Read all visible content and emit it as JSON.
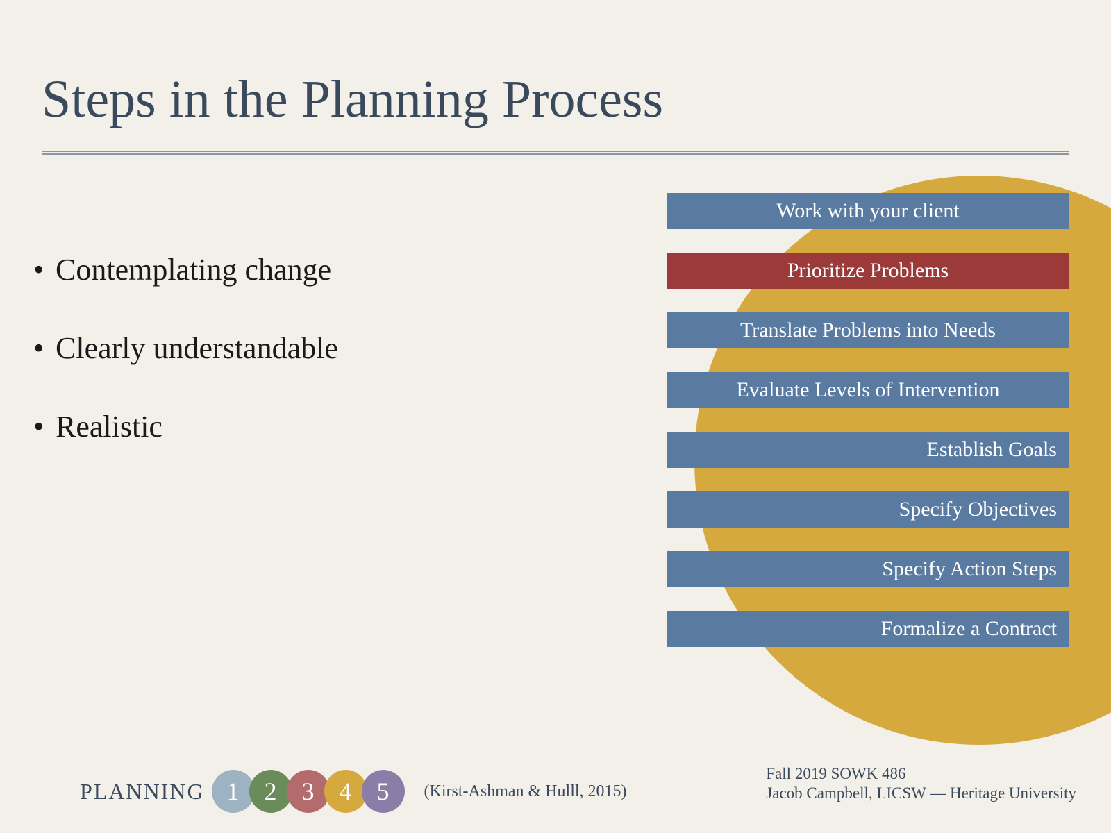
{
  "title": "Steps in the Planning Process",
  "title_color": "#3a4a5c",
  "title_fontsize": 76,
  "background_color": "#f3f0e9",
  "bullets": [
    "Contemplating change",
    "Clearly understandable",
    "Realistic"
  ],
  "bullet_fontsize": 44,
  "bullet_color": "#1a1a1a",
  "yellow_circle_color": "#d6a93f",
  "steps": [
    {
      "label": "Work with your client",
      "bg": "#5a7ba1",
      "align": "center"
    },
    {
      "label": "Prioritize Problems",
      "bg": "#9c3a3a",
      "align": "center"
    },
    {
      "label": "Translate Problems into Needs",
      "bg": "#5a7ba1",
      "align": "center"
    },
    {
      "label": "Evaluate Levels of Intervention",
      "bg": "#5a7ba1",
      "align": "center"
    },
    {
      "label": "Establish Goals",
      "bg": "#5a7ba1",
      "align": "right"
    },
    {
      "label": "Specify Objectives",
      "bg": "#5a7ba1",
      "align": "right"
    },
    {
      "label": "Specify Action Steps",
      "bg": "#5a7ba1",
      "align": "right"
    },
    {
      "label": "Formalize a Contract",
      "bg": "#5a7ba1",
      "align": "right"
    }
  ],
  "step_text_color": "#ffffff",
  "step_fontsize": 30,
  "footer": {
    "planning_label": "PLANNING",
    "numbers": [
      {
        "n": "1",
        "bg": "#9db2c2"
      },
      {
        "n": "2",
        "bg": "#6a8b5a"
      },
      {
        "n": "3",
        "bg": "#b36b6b"
      },
      {
        "n": "4",
        "bg": "#d6a93f"
      },
      {
        "n": "5",
        "bg": "#8c7da8"
      }
    ],
    "citation": "(Kirst-Ashman & Hulll, 2015)",
    "course": "Fall 2019 SOWK 486",
    "author": "Jacob Campbell, LICSW — Heritage University"
  }
}
